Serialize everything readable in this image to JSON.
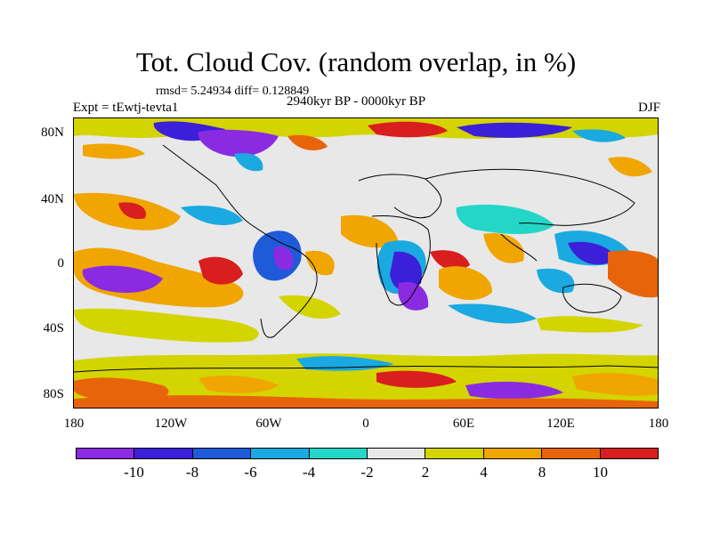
{
  "title": "Tot. Cloud Cov. (random overlap, in %)",
  "stats": "rmsd= 5.24934 diff= 0.128849",
  "experiment": "Expt = tEwtj-tevta1",
  "period": "2940kyr BP - 0000kyr BP",
  "season": "DJF",
  "lat_labels": [
    "80N",
    "40N",
    "0",
    "40S",
    "80S"
  ],
  "lon_labels": [
    "180",
    "120W",
    "60W",
    "0",
    "60E",
    "120E",
    "180"
  ],
  "colorbar": {
    "colors": [
      "#8a2be2",
      "#3c1fd8",
      "#1f5ad8",
      "#1aa9e0",
      "#24d6c8",
      "#e8e8e8",
      "#d4d400",
      "#f0a500",
      "#e8640a",
      "#d81e1e"
    ],
    "labels": [
      "-10",
      "-8",
      "-6",
      "-4",
      "-2",
      "2",
      "4",
      "8",
      "10"
    ]
  }
}
